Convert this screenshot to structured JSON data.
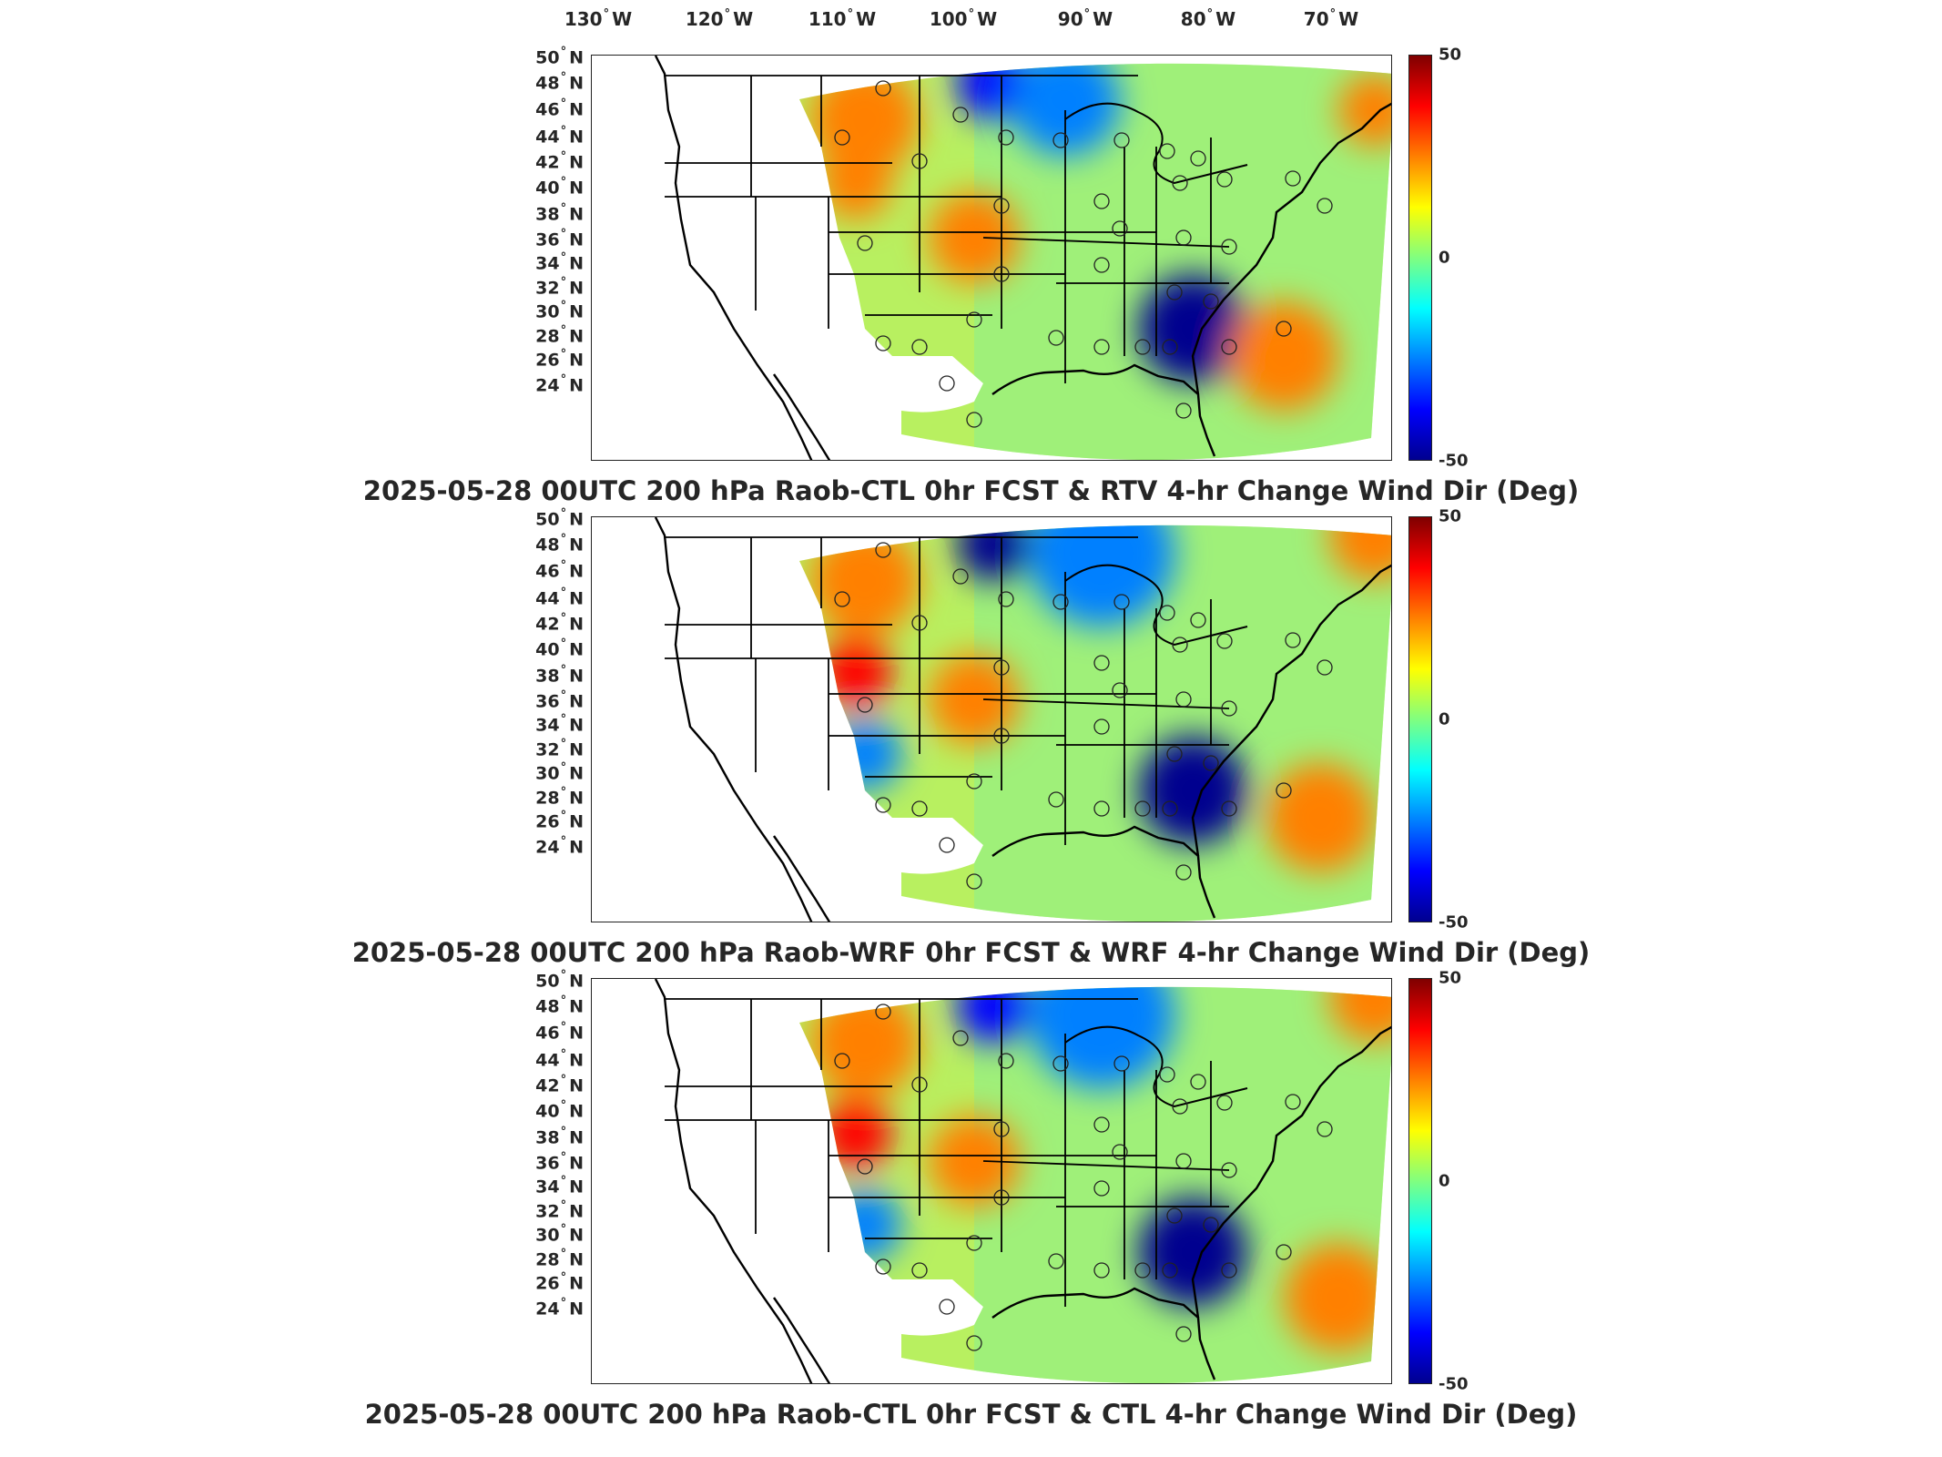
{
  "longitude_labels": [
    "130",
    "120",
    "110",
    "100",
    "90",
    "80",
    "70"
  ],
  "lon_suffix": "W",
  "latitude_labels": [
    "50",
    "48",
    "46",
    "44",
    "42",
    "40",
    "38",
    "36",
    "34",
    "32",
    "30",
    "28",
    "26",
    "24"
  ],
  "lat_suffix": "N",
  "colorbar": {
    "ticks": [
      "50",
      "0",
      "-50"
    ],
    "colors": [
      "#7f0000",
      "#ff0000",
      "#ff8000",
      "#ffff00",
      "#80ff80",
      "#00ffff",
      "#0080ff",
      "#0000ff",
      "#00008f"
    ]
  },
  "panels": [
    {
      "title": "2025-05-28 00UTC 200 hPa Raob-CTL 0hr FCST & RTV 4-hr Change Wind Dir (Deg)"
    },
    {
      "title": "2025-05-28 00UTC 200 hPa Raob-WRF 0hr FCST & WRF 4-hr Change Wind Dir (Deg)"
    },
    {
      "title": "2025-05-28 00UTC 200 hPa Raob-CTL 0hr FCST & CTL 4-hr Change Wind Dir (Deg)"
    }
  ]
}
